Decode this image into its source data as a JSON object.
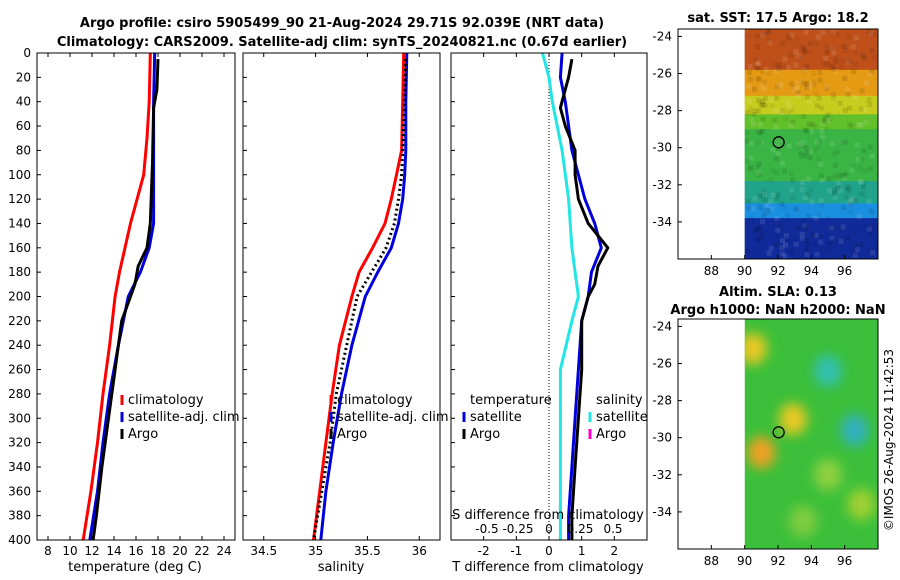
{
  "header": {
    "title_line1": "Argo profile: csiro 5905499_90 21-Aug-2024 29.71S 92.039E (NRT data)",
    "title_line2": "Climatology: CARS2009. Satellite-adj clim: synTS_20240821.nc (0.67d earlier)"
  },
  "side_stamp": "©IMOS 26-Aug-2024 11:42:53",
  "colors": {
    "climatology": "#ff0000",
    "satellite": "#0000dd",
    "argo": "#000000",
    "temp_diff": "#22e5e5",
    "sal_diff_argo": "#ff00cc"
  },
  "chart_data": [
    {
      "name": "temperature-profile",
      "type": "line",
      "xlabel": "temperature (deg C)",
      "ylabel": "",
      "xlim": [
        7,
        25
      ],
      "ylim": [
        0,
        400
      ],
      "x_ticks": [
        8,
        10,
        12,
        14,
        16,
        18,
        20,
        22,
        24
      ],
      "y_ticks": [
        0,
        20,
        40,
        60,
        80,
        100,
        120,
        140,
        160,
        180,
        200,
        220,
        240,
        260,
        280,
        300,
        320,
        340,
        360,
        380,
        400
      ],
      "legend": [
        "climatology",
        "satellite-adj. clim",
        "Argo"
      ],
      "legend_position": "lower-right",
      "series": [
        {
          "name": "climatology",
          "color": "#ff0000",
          "depth": [
            0,
            40,
            70,
            100,
            120,
            140,
            160,
            180,
            200,
            240,
            280,
            320,
            360,
            400
          ],
          "values": [
            17.3,
            17.2,
            17.0,
            16.7,
            16.1,
            15.5,
            15.0,
            14.5,
            14.1,
            13.6,
            13.0,
            12.5,
            11.9,
            11.2
          ]
        },
        {
          "name": "satellite-adj. clim",
          "color": "#0000dd",
          "depth": [
            0,
            40,
            70,
            100,
            140,
            160,
            180,
            200,
            240,
            280,
            320,
            360,
            400
          ],
          "values": [
            17.7,
            17.6,
            17.6,
            17.6,
            17.6,
            17.2,
            16.4,
            15.3,
            14.4,
            13.6,
            13.0,
            12.5,
            11.8
          ]
        },
        {
          "name": "Argo",
          "color": "#000000",
          "depth": [
            5,
            30,
            45,
            90,
            140,
            160,
            175,
            190,
            200,
            220,
            260,
            300,
            340,
            380,
            400
          ],
          "values": [
            18.0,
            17.9,
            17.6,
            17.5,
            17.3,
            17.0,
            16.2,
            15.9,
            15.5,
            14.7,
            14.1,
            13.5,
            12.9,
            12.4,
            12.1
          ]
        }
      ]
    },
    {
      "name": "salinity-profile",
      "type": "line",
      "xlabel": "salinity",
      "ylabel": "",
      "xlim": [
        34.3,
        36.2
      ],
      "ylim": [
        0,
        400
      ],
      "x_ticks": [
        34.5,
        35,
        35.5,
        36
      ],
      "legend": [
        "climatology",
        "satellite-adj. clim",
        "Argo"
      ],
      "legend_position": "lower-right",
      "series": [
        {
          "name": "climatology",
          "color": "#ff0000",
          "depth": [
            0,
            40,
            80,
            100,
            120,
            140,
            160,
            180,
            200,
            240,
            280,
            320,
            360,
            400
          ],
          "values": [
            35.85,
            35.84,
            35.83,
            35.78,
            35.73,
            35.67,
            35.55,
            35.42,
            35.35,
            35.23,
            35.16,
            35.1,
            35.04,
            34.98
          ]
        },
        {
          "name": "satellite-adj. clim",
          "color": "#0000dd",
          "depth": [
            0,
            40,
            80,
            100,
            120,
            140,
            160,
            180,
            200,
            240,
            280,
            320,
            360,
            400
          ],
          "values": [
            35.88,
            35.87,
            35.87,
            35.86,
            35.84,
            35.8,
            35.73,
            35.6,
            35.48,
            35.35,
            35.25,
            35.17,
            35.1,
            35.05
          ]
        },
        {
          "name": "Argo",
          "color": "#000000",
          "depth": [
            5,
            40,
            80,
            100,
            120,
            140,
            160,
            180,
            200,
            240,
            280,
            320,
            360,
            400
          ],
          "values": [
            35.87,
            35.86,
            35.84,
            35.83,
            35.8,
            35.76,
            35.68,
            35.54,
            35.4,
            35.3,
            35.2,
            35.14,
            35.06,
            34.98
          ]
        }
      ]
    },
    {
      "name": "difference-profile",
      "type": "line",
      "xlabel": "T difference from climatology",
      "top_axis_label": "S difference from climatology",
      "xlim": [
        -3,
        3
      ],
      "ylim": [
        0,
        400
      ],
      "x_ticks": [
        -2,
        -1,
        0,
        1,
        2
      ],
      "top_ticks": [
        "-0.5",
        "-0.25",
        "0",
        "0.25",
        "0.5"
      ],
      "legend_temperature": [
        "temperature",
        "satellite",
        "Argo"
      ],
      "legend_salinity": [
        "salinity",
        "satellite",
        "Argo"
      ],
      "series": [
        {
          "name": "temperature satellite",
          "color": "#22e5e5",
          "depth": [
            0,
            20,
            40,
            80,
            120,
            160,
            180,
            200,
            220,
            260,
            300,
            400
          ],
          "values": [
            -0.2,
            0.0,
            0.1,
            0.4,
            0.6,
            0.7,
            0.8,
            0.9,
            0.7,
            0.35,
            0.35,
            0.35
          ]
        },
        {
          "name": "temperature satellite-blue",
          "color": "#0000dd",
          "depth": [
            0,
            20,
            40,
            60,
            80,
            100,
            120,
            140,
            160,
            180,
            200,
            220,
            260,
            300,
            340,
            380,
            400
          ],
          "values": [
            0.4,
            0.35,
            0.5,
            0.6,
            0.7,
            0.9,
            1.1,
            1.4,
            1.6,
            1.3,
            1.2,
            1.0,
            0.9,
            0.8,
            0.7,
            0.6,
            0.6
          ]
        },
        {
          "name": "temperature Argo",
          "color": "#000000",
          "depth": [
            5,
            20,
            30,
            45,
            60,
            80,
            100,
            120,
            140,
            160,
            175,
            190,
            200,
            220,
            260,
            300,
            340,
            380,
            400
          ],
          "values": [
            0.7,
            0.6,
            0.5,
            0.35,
            0.5,
            0.8,
            0.8,
            0.9,
            1.2,
            1.8,
            1.5,
            1.4,
            1.2,
            1.0,
            1.0,
            0.9,
            0.8,
            0.7,
            0.7
          ]
        }
      ]
    },
    {
      "name": "sst-map",
      "type": "heatmap",
      "title": "sat. SST: 17.5 Argo: 18.2",
      "x_ticks": [
        88,
        90,
        92,
        94,
        96
      ],
      "y_ticks": [
        -24,
        -26,
        -28,
        -30,
        -32,
        -34
      ],
      "xlim": [
        86,
        98
      ],
      "ylim": [
        -36,
        -23.6
      ],
      "data_lon_range": [
        90,
        98
      ],
      "argo_position": {
        "lon": 92.039,
        "lat": -29.71
      },
      "color_bands": [
        {
          "lat_top": -23.6,
          "lat_bottom": -25.8,
          "color": "#c0501a",
          "label": "warm"
        },
        {
          "lat_top": -25.8,
          "lat_bottom": -27.2,
          "color": "#e59a14",
          "label": "orange"
        },
        {
          "lat_top": -27.2,
          "lat_bottom": -28.2,
          "color": "#c8cc1e",
          "label": "yellow"
        },
        {
          "lat_top": -28.2,
          "lat_bottom": -29.0,
          "color": "#62c12a",
          "label": "yellow-green"
        },
        {
          "lat_top": -29.0,
          "lat_bottom": -31.8,
          "color": "#3ab545",
          "label": "green"
        },
        {
          "lat_top": -31.8,
          "lat_bottom": -33.0,
          "color": "#20a38a",
          "label": "teal"
        },
        {
          "lat_top": -33.0,
          "lat_bottom": -33.8,
          "color": "#1a8fe0",
          "label": "light-blue"
        },
        {
          "lat_top": -33.8,
          "lat_bottom": -36.0,
          "color": "#102a9a",
          "label": "dark-blue"
        }
      ]
    },
    {
      "name": "sla-map",
      "type": "heatmap",
      "title_line1": "Altim. SLA: 0.13",
      "title_line2": "Argo h1000: NaN h2000: NaN",
      "x_ticks": [
        88,
        90,
        92,
        94,
        96
      ],
      "y_ticks": [
        -24,
        -26,
        -28,
        -30,
        -32,
        -34
      ],
      "xlim": [
        86,
        98
      ],
      "ylim": [
        -36,
        -23.6
      ],
      "data_lon_range": [
        90,
        98
      ],
      "argo_position": {
        "lon": 92.039,
        "lat": -29.71
      },
      "base_color": "#3bbf3a",
      "blobs": [
        {
          "lon": 90.5,
          "lat": -25.2,
          "color": "#e8c820",
          "label": "high"
        },
        {
          "lon": 92.9,
          "lat": -29.0,
          "color": "#e8c820",
          "label": "high"
        },
        {
          "lon": 91.0,
          "lat": -30.8,
          "color": "#f0a020",
          "label": "highest"
        },
        {
          "lon": 95.0,
          "lat": -26.4,
          "color": "#30c0b0",
          "label": "low"
        },
        {
          "lon": 96.6,
          "lat": -29.6,
          "color": "#30b0c0",
          "label": "low"
        },
        {
          "lon": 95.0,
          "lat": -32.0,
          "color": "#90d040",
          "label": "mid-high"
        },
        {
          "lon": 97.0,
          "lat": -33.6,
          "color": "#a0d030",
          "label": "mid-high"
        },
        {
          "lon": 93.5,
          "lat": -34.5,
          "color": "#80cc40",
          "label": "mid-high"
        }
      ]
    }
  ]
}
